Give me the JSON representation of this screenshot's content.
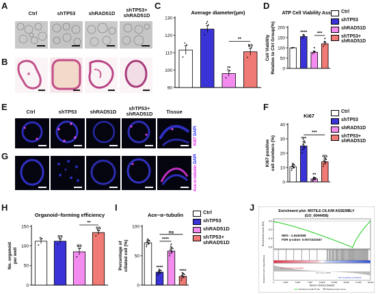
{
  "panels": {
    "A": "A",
    "B": "B",
    "C": "C",
    "D": "D",
    "E": "E",
    "F": "F",
    "G": "G",
    "H": "H",
    "I": "I",
    "J": "J"
  },
  "top_groups": [
    "Ctrl",
    "shTP53",
    "shRAD51D",
    "shTP53+\nshRAD51D"
  ],
  "mid_groups": [
    "Ctrl",
    "shTP53",
    "shRAD51D",
    "shTP53+\nshRAD51D",
    "Tissue"
  ],
  "stain_E": {
    "marker": "Ki67",
    "dapi": "DAPI"
  },
  "stain_G": {
    "marker": "Ace-α-tubulin",
    "dapi": "DAPI"
  },
  "legend": [
    "Ctrl",
    "shTP53",
    "shRAD51D",
    "shTP53+\nshRAD51D"
  ],
  "colors": {
    "ctrl": "#ffffff",
    "shTP53": "#3a34d8",
    "shRAD51D": "#f48cf0",
    "combo": "#f07a74"
  },
  "chart_data": [
    {
      "panel": "C",
      "type": "bar",
      "title": "Average diameter(μm)",
      "ylabel": "",
      "ylim": [
        90,
        130
      ],
      "yticks": [
        90,
        100,
        110,
        120,
        130
      ],
      "categories": [
        "Ctrl",
        "shTP53",
        "shRAD51D",
        "shTP53+shRAD51D"
      ],
      "values": [
        111.5,
        123.5,
        98,
        110.5
      ],
      "errors": [
        2.5,
        2,
        1.5,
        2
      ],
      "annotations": [
        "",
        "*",
        "**",
        "ns"
      ],
      "bracket": {
        "from": 2,
        "to": 3,
        "label": "**"
      }
    },
    {
      "panel": "D",
      "type": "bar",
      "title": "ATP Cell Viability Assay",
      "ylabel": "Cell Viability\nRelative to Ctrl Group(%)",
      "ylim": [
        0,
        200
      ],
      "yticks": [
        0,
        50,
        100,
        150,
        200
      ],
      "categories": [
        "Ctrl",
        "shTP53",
        "shRAD51D",
        "shTP53+shRAD51D"
      ],
      "values": [
        100,
        155,
        78,
        120
      ],
      "errors": [
        1,
        6,
        4,
        7
      ],
      "annotations": [
        "",
        "****",
        "*",
        "*"
      ],
      "bracket": {
        "from": 2,
        "to": 3,
        "label": "***"
      }
    },
    {
      "panel": "F",
      "type": "bar",
      "title": "Ki67",
      "ylabel": "Ki67-positive\ncell numbers (%)",
      "ylim": [
        0,
        40
      ],
      "yticks": [
        0,
        10,
        20,
        30,
        40
      ],
      "categories": [
        "Ctrl",
        "shTP53",
        "shRAD51D",
        "shTP53+shRAD51D"
      ],
      "values": [
        10.5,
        25,
        2,
        14
      ],
      "errors": [
        1.5,
        3,
        0.8,
        2
      ],
      "annotations": [
        "",
        "***",
        "**",
        "ns"
      ],
      "bracket": {
        "from": 1,
        "to": 3,
        "label": "***"
      }
    },
    {
      "panel": "H",
      "type": "bar",
      "title": "Organoid−forming efficiency",
      "ylabel": "No. organoid\nper well",
      "ylim": [
        0,
        150
      ],
      "yticks": [
        0,
        50,
        100,
        150
      ],
      "categories": [
        "Ctrl",
        "shTP53",
        "shRAD51D",
        "shTP53+shRAD51D"
      ],
      "values": [
        112,
        112,
        85,
        134
      ],
      "errors": [
        6,
        5,
        8,
        5
      ],
      "annotations": [
        "",
        "ns",
        "ns",
        "ns"
      ],
      "bracket": {
        "from": 2,
        "to": 3,
        "label": "**"
      }
    },
    {
      "panel": "I",
      "type": "bar",
      "title": "Ace−α−tubulin",
      "ylabel": "Percentage of\nciliated cell (%)",
      "ylim": [
        0,
        100
      ],
      "yticks": [
        0,
        50,
        100
      ],
      "categories": [
        "Ctrl",
        "shTP53",
        "shRAD51D",
        "shTP53+shRAD51D"
      ],
      "values": [
        72,
        22,
        58,
        15
      ],
      "errors": [
        4,
        3,
        5,
        4
      ],
      "annotations": [
        "",
        "****",
        "*",
        "****"
      ],
      "brackets": [
        {
          "from": 1,
          "to": 2,
          "label": "****"
        },
        {
          "from": 1,
          "to": 3,
          "label": "ns"
        }
      ]
    },
    {
      "panel": "J",
      "type": "line",
      "title": "Enrichment plot: MOTILE CILIUM ASSEMBLY\n(GO_0044458)",
      "ylabel": "Enrichment score (ES)",
      "yticks": [
        "0.0",
        "-0.2",
        "-0.4",
        "-0.6"
      ],
      "stats": {
        "nes": "NES: -1.9440368",
        "fdr": "FDR q-value: 0.0072341547"
      },
      "xlabel": "Rank in Ordered Dataset",
      "xticks": [
        "0",
        "2,500",
        "5,000",
        "7,500",
        "10,000",
        "12,500",
        "15,000",
        "17,500",
        "20,000"
      ],
      "ranked_ylabel": "Ranked list metric (Signal2Noise)",
      "zero_cross": "Zero cross at 8558",
      "pos_label": "'NTF' (positively correlated)",
      "neg_label": "'KD' (negatively correlated)",
      "legend": [
        "Enrichment profile",
        "Hits",
        "Ranking metric scores"
      ]
    }
  ]
}
